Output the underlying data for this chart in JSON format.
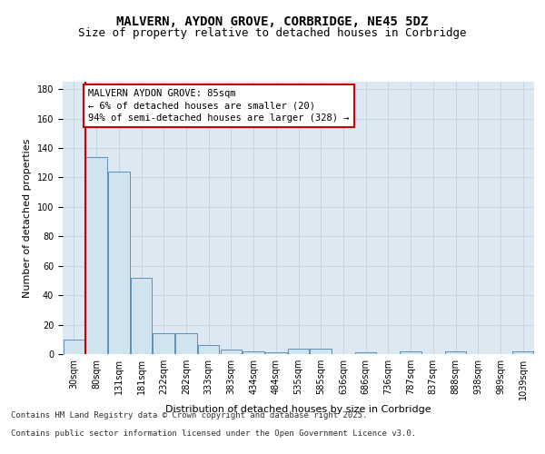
{
  "title_line1": "MALVERN, AYDON GROVE, CORBRIDGE, NE45 5DZ",
  "title_line2": "Size of property relative to detached houses in Corbridge",
  "xlabel": "Distribution of detached houses by size in Corbridge",
  "ylabel": "Number of detached properties",
  "categories": [
    "30sqm",
    "80sqm",
    "131sqm",
    "181sqm",
    "232sqm",
    "282sqm",
    "333sqm",
    "383sqm",
    "434sqm",
    "484sqm",
    "535sqm",
    "585sqm",
    "636sqm",
    "686sqm",
    "736sqm",
    "787sqm",
    "837sqm",
    "888sqm",
    "938sqm",
    "989sqm",
    "1039sqm"
  ],
  "values": [
    10,
    134,
    124,
    52,
    14,
    14,
    6,
    3,
    2,
    1,
    4,
    4,
    0,
    1,
    0,
    2,
    0,
    2,
    0,
    0,
    2
  ],
  "bar_color": "#d0e4f0",
  "bar_edge_color": "#6090b8",
  "annotation_text_line1": "MALVERN AYDON GROVE: 85sqm",
  "annotation_text_line2": "← 6% of detached houses are smaller (20)",
  "annotation_text_line3": "94% of semi-detached houses are larger (328) →",
  "annotation_box_facecolor": "#ffffff",
  "annotation_box_edgecolor": "#cc0000",
  "red_line_color": "#cc0000",
  "grid_color": "#c8d4e0",
  "background_color": "#dce8f2",
  "ylim": [
    0,
    185
  ],
  "yticks": [
    0,
    20,
    40,
    60,
    80,
    100,
    120,
    140,
    160,
    180
  ],
  "footer_line1": "Contains HM Land Registry data © Crown copyright and database right 2025.",
  "footer_line2": "Contains public sector information licensed under the Open Government Licence v3.0.",
  "title_fontsize": 10,
  "subtitle_fontsize": 9,
  "axis_label_fontsize": 8,
  "tick_fontsize": 7,
  "annotation_fontsize": 7.5,
  "footer_fontsize": 6.5
}
